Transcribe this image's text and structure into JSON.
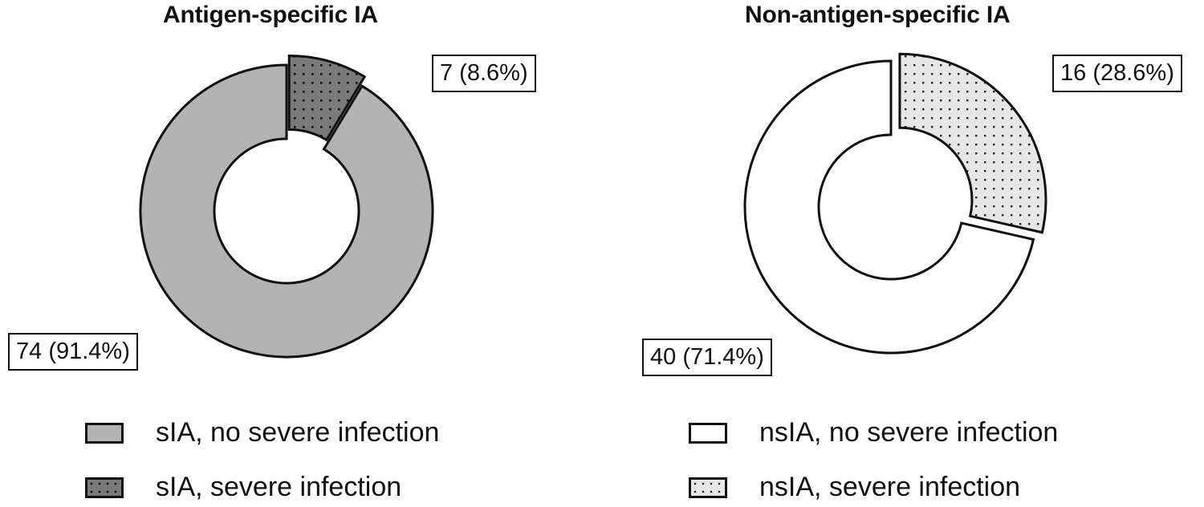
{
  "chart_data": [
    {
      "type": "pie",
      "title": "Antigen-specific IA",
      "slices": [
        {
          "legend": "sIA, severe infection",
          "count": 7,
          "percent": 8.6,
          "label": "7 (8.6%)",
          "fill": "#7a7a7a",
          "pattern": "dots",
          "exploded": true
        },
        {
          "legend": "sIA, no severe infection",
          "count": 74,
          "percent": 91.4,
          "label": "74 (91.4%)",
          "fill": "#b3b3b3",
          "pattern": "none",
          "exploded": false
        }
      ]
    },
    {
      "type": "pie",
      "title": "Non-antigen-specific IA",
      "slices": [
        {
          "legend": "nsIA, severe infection",
          "count": 16,
          "percent": 28.6,
          "label": "16 (28.6%)",
          "fill": "#e6e6e6",
          "pattern": "dots",
          "exploded": true
        },
        {
          "legend": "nsIA, no severe infection",
          "count": 40,
          "percent": 71.4,
          "label": "40 (71.4%)",
          "fill": "#ffffff",
          "pattern": "none",
          "exploded": false
        }
      ]
    }
  ],
  "legend": {
    "left": [
      "sIA, no severe infection",
      "sIA, severe infection"
    ],
    "right": [
      "nsIA, no severe infection",
      "nsIA, severe infection"
    ]
  }
}
